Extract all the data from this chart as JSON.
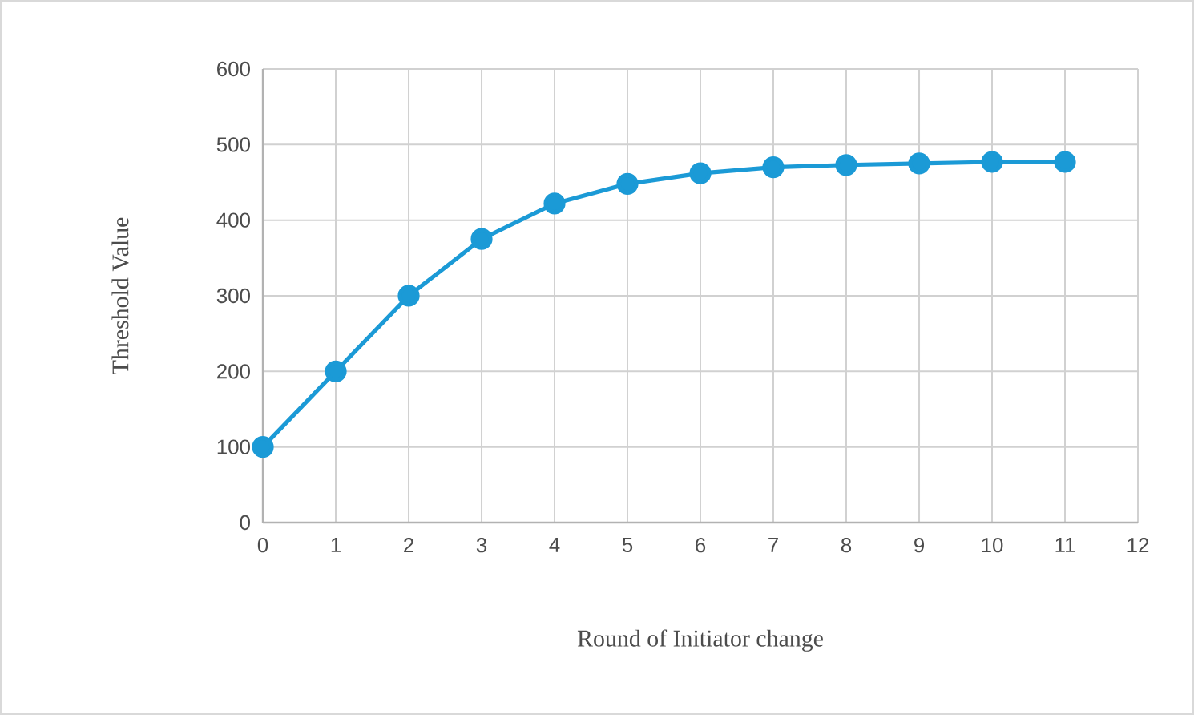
{
  "chart_data": {
    "type": "line",
    "xlabel": "Round of Initiator change",
    "ylabel": "Threshold  Value",
    "x": [
      0,
      1,
      2,
      3,
      4,
      5,
      6,
      7,
      8,
      9,
      10,
      11
    ],
    "series": [
      {
        "color": "#1b9ad6",
        "values": [
          100,
          200,
          300,
          375,
          422,
          448,
          462,
          470,
          473,
          475,
          477,
          477
        ]
      }
    ],
    "xlim": [
      0,
      12
    ],
    "ylim": [
      0,
      600
    ],
    "xticks": [
      0,
      1,
      2,
      3,
      4,
      5,
      6,
      7,
      8,
      9,
      10,
      11,
      12
    ],
    "yticks": [
      0,
      100,
      200,
      300,
      400,
      500,
      600
    ],
    "grid": true,
    "marker": "circle",
    "line_style": "solid"
  }
}
